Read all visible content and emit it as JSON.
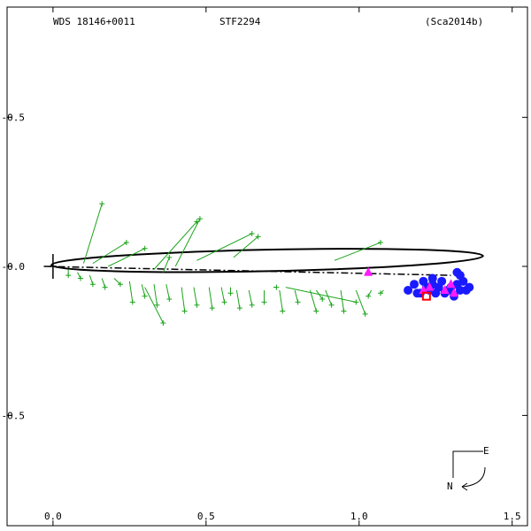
{
  "header": {
    "wds_id": "WDS 18146+0011",
    "discoverer": "STF2294",
    "reference": "(Sca2014b)"
  },
  "compass": {
    "east": "E",
    "north": "N"
  },
  "colors": {
    "frame": "#000000",
    "orbit": "#000000",
    "measures": "#1aa31a",
    "blue_points": "#1a1aff",
    "magenta_points": "#ff1aff",
    "red_point": "#ff0000"
  },
  "chart_data": {
    "type": "scatter",
    "title": "",
    "xlabel": "",
    "ylabel": "",
    "xlim": [
      -0.15,
      1.55
    ],
    "ylim": [
      0.87,
      -0.87
    ],
    "x_ticks": [
      {
        "value": 0.0,
        "label": "0.0"
      },
      {
        "value": 0.5,
        "label": "0.5"
      },
      {
        "value": 1.0,
        "label": "1.0"
      },
      {
        "value": 1.5,
        "label": "1.5"
      }
    ],
    "y_ticks": [
      {
        "value": -0.5,
        "label": "-0.5"
      },
      {
        "value": 0.0,
        "label": "-0.0"
      },
      {
        "value": 0.5,
        "label": "-0.5"
      }
    ],
    "orbit": {
      "ellipse": {
        "cx": 0.7,
        "cy": 0.02,
        "rx": 0.705,
        "ry": 0.036,
        "angle_deg": -1.2
      },
      "node_line": {
        "from": [
          -0.03,
          0.0
        ],
        "to": [
          1.3,
          -0.03
        ]
      }
    },
    "primary_marker": [
      0.0,
      0.0
    ],
    "measures": [
      {
        "obs": [
          0.36,
          -0.19
        ],
        "pred": [
          0.3,
          -0.07
        ]
      },
      {
        "obs": [
          0.05,
          -0.03
        ],
        "pred": [
          0.05,
          -0.01
        ]
      },
      {
        "obs": [
          0.09,
          -0.04
        ],
        "pred": [
          0.08,
          -0.02
        ]
      },
      {
        "obs": [
          0.13,
          -0.06
        ],
        "pred": [
          0.12,
          -0.03
        ]
      },
      {
        "obs": [
          0.17,
          -0.07
        ],
        "pred": [
          0.16,
          -0.04
        ]
      },
      {
        "obs": [
          0.22,
          -0.06
        ],
        "pred": [
          0.2,
          -0.04
        ]
      },
      {
        "obs": [
          0.26,
          -0.12
        ],
        "pred": [
          0.25,
          -0.05
        ]
      },
      {
        "obs": [
          0.3,
          -0.1
        ],
        "pred": [
          0.29,
          -0.06
        ]
      },
      {
        "obs": [
          0.34,
          -0.13
        ],
        "pred": [
          0.33,
          -0.06
        ]
      },
      {
        "obs": [
          0.38,
          -0.11
        ],
        "pred": [
          0.37,
          -0.06
        ]
      },
      {
        "obs": [
          0.43,
          -0.15
        ],
        "pred": [
          0.42,
          -0.07
        ]
      },
      {
        "obs": [
          0.47,
          -0.13
        ],
        "pred": [
          0.46,
          -0.07
        ]
      },
      {
        "obs": [
          0.52,
          -0.14
        ],
        "pred": [
          0.51,
          -0.07
        ]
      },
      {
        "obs": [
          0.56,
          -0.12
        ],
        "pred": [
          0.55,
          -0.07
        ]
      },
      {
        "obs": [
          0.61,
          -0.14
        ],
        "pred": [
          0.6,
          -0.08
        ]
      },
      {
        "obs": [
          0.65,
          -0.13
        ],
        "pred": [
          0.64,
          -0.08
        ]
      },
      {
        "obs": [
          0.69,
          -0.12
        ],
        "pred": [
          0.69,
          -0.08
        ]
      },
      {
        "obs": [
          0.75,
          -0.15
        ],
        "pred": [
          0.74,
          -0.08
        ]
      },
      {
        "obs": [
          0.8,
          -0.12
        ],
        "pred": [
          0.79,
          -0.08
        ]
      },
      {
        "obs": [
          0.86,
          -0.15
        ],
        "pred": [
          0.84,
          -0.08
        ]
      },
      {
        "obs": [
          0.91,
          -0.13
        ],
        "pred": [
          0.89,
          -0.08
        ]
      },
      {
        "obs": [
          0.95,
          -0.15
        ],
        "pred": [
          0.94,
          -0.08
        ]
      },
      {
        "obs": [
          1.02,
          -0.16
        ],
        "pred": [
          0.99,
          -0.08
        ]
      },
      {
        "obs": [
          1.03,
          -0.1
        ],
        "pred": [
          1.04,
          -0.08
        ]
      },
      {
        "obs": [
          1.07,
          -0.09
        ],
        "pred": [
          1.08,
          -0.08
        ]
      },
      {
        "obs": [
          0.16,
          0.21
        ],
        "pred": [
          0.1,
          0.01
        ]
      },
      {
        "obs": [
          0.24,
          0.08
        ],
        "pred": [
          0.13,
          0.01
        ]
      },
      {
        "obs": [
          0.3,
          0.06
        ],
        "pred": [
          0.18,
          0.0
        ]
      },
      {
        "obs": [
          0.47,
          0.15
        ],
        "pred": [
          0.33,
          -0.01
        ]
      },
      {
        "obs": [
          0.48,
          0.16
        ],
        "pred": [
          0.4,
          0.0
        ]
      },
      {
        "obs": [
          0.67,
          0.1
        ],
        "pred": [
          0.59,
          0.03
        ]
      },
      {
        "obs": [
          0.65,
          0.11
        ],
        "pred": [
          0.47,
          0.02
        ]
      },
      {
        "obs": [
          0.99,
          -0.12
        ],
        "pred": [
          0.76,
          -0.07
        ]
      },
      {
        "obs": [
          1.07,
          0.08
        ],
        "pred": [
          0.92,
          0.02
        ]
      },
      {
        "obs": [
          0.38,
          0.03
        ],
        "pred": [
          0.36,
          -0.02
        ]
      },
      {
        "obs": [
          0.58,
          -0.09
        ],
        "pred": [
          0.58,
          -0.07
        ]
      },
      {
        "obs": [
          0.88,
          -0.11
        ],
        "pred": [
          0.86,
          -0.08
        ]
      },
      {
        "obs": [
          0.73,
          -0.07
        ],
        "pred": [
          0.72,
          -0.07
        ]
      }
    ],
    "blue_points": [
      [
        1.16,
        -0.08
      ],
      [
        1.18,
        -0.06
      ],
      [
        1.2,
        -0.09
      ],
      [
        1.22,
        -0.07
      ],
      [
        1.23,
        -0.08
      ],
      [
        1.24,
        -0.06
      ],
      [
        1.25,
        -0.09
      ],
      [
        1.26,
        -0.07
      ],
      [
        1.27,
        -0.05
      ],
      [
        1.28,
        -0.09
      ],
      [
        1.3,
        -0.07
      ],
      [
        1.31,
        -0.1
      ],
      [
        1.32,
        -0.06
      ],
      [
        1.33,
        -0.08
      ],
      [
        1.34,
        -0.05
      ],
      [
        1.35,
        -0.08
      ],
      [
        1.36,
        -0.07
      ],
      [
        1.33,
        -0.03
      ],
      [
        1.32,
        -0.02
      ],
      [
        1.24,
        -0.04
      ],
      [
        1.19,
        -0.09
      ],
      [
        1.29,
        -0.08
      ],
      [
        1.21,
        -0.05
      ]
    ],
    "magenta_points": [
      [
        1.03,
        -0.02
      ],
      [
        1.21,
        -0.08
      ],
      [
        1.28,
        -0.08
      ],
      [
        1.3,
        -0.06
      ],
      [
        1.31,
        -0.09
      ],
      [
        1.23,
        -0.07
      ]
    ],
    "red_points": [
      [
        1.22,
        -0.1
      ]
    ]
  }
}
